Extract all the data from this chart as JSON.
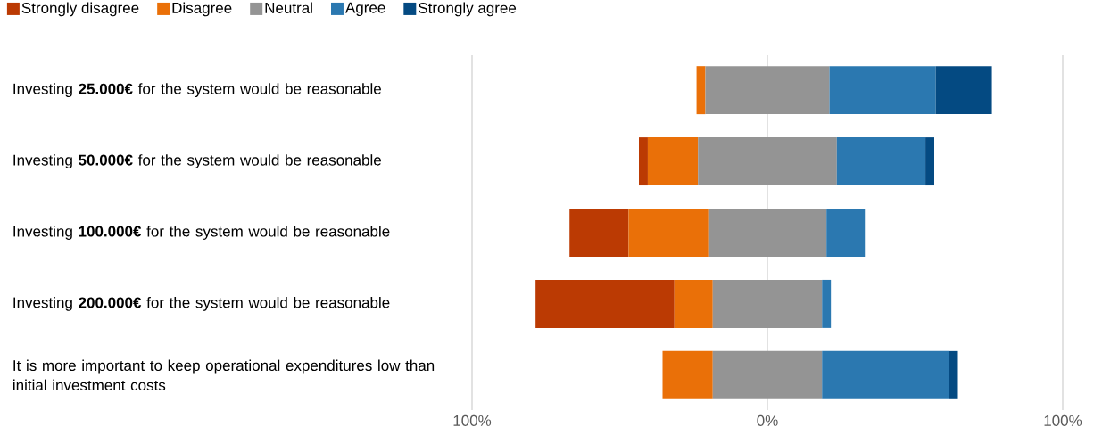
{
  "chart_data": {
    "type": "bar",
    "orientation": "horizontal",
    "categories": [
      "Investing **25.000€** for the system would be reasonable",
      "Investing **50.000€** for the system would be reasonable",
      "Investing **100.000€** for the system would be reasonable",
      "Investing **200.000€** for the system would be reasonable",
      "It is more important to keep operational expenditures low than initial investment costs"
    ],
    "series": [
      {
        "name": "Strongly disagree",
        "color": "#bb3a03",
        "base": [
          null,
          -43.5,
          -67,
          -78.5,
          null
        ],
        "values": [
          null,
          3,
          20,
          47,
          null
        ]
      },
      {
        "name": "Disagree",
        "color": "#ea7008",
        "base": [
          -24,
          -40.5,
          -47,
          -31.5,
          -35.5
        ],
        "values": [
          3,
          17,
          27,
          13,
          17
        ]
      },
      {
        "name": "Neutral",
        "color": "#949494",
        "base": [
          -21,
          -23.5,
          -20,
          -18.5,
          -18.5
        ],
        "values": [
          42,
          47,
          40,
          37,
          37
        ]
      },
      {
        "name": "Agree",
        "color": "#2b78b0",
        "base": [
          21,
          23.5,
          20,
          18.5,
          18.5
        ],
        "values": [
          36,
          30,
          13,
          3,
          43
        ]
      },
      {
        "name": "Strongly agree",
        "color": "#044a82",
        "base": [
          57,
          53.5,
          null,
          null,
          61.5
        ],
        "values": [
          19,
          3,
          null,
          null,
          3
        ]
      }
    ],
    "xlim": [
      -100,
      100
    ],
    "xticks": [
      {
        "value": -100,
        "label": "100%"
      },
      {
        "value": 0,
        "label": "0%"
      },
      {
        "value": 100,
        "label": "100%"
      }
    ],
    "grid": "x",
    "legend": "top"
  }
}
